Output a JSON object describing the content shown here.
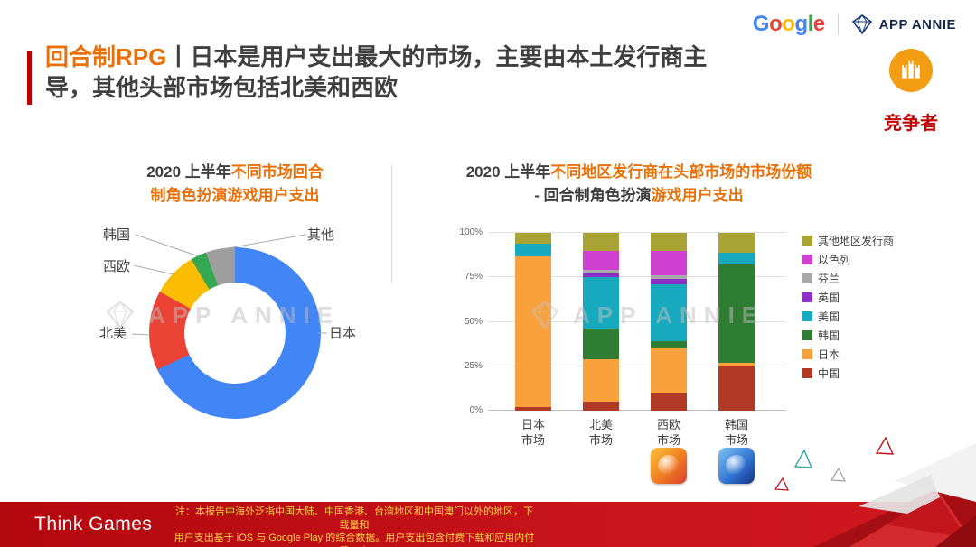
{
  "header": {
    "title_segments": [
      {
        "text": "回合制RPG",
        "highlight": true
      },
      {
        "text": "丨日本是用户支出最大的市场，主要由本土发行商主\n导，其他头部市场包括北美和西欧",
        "highlight": false
      }
    ],
    "google_letters": [
      {
        "ch": "G",
        "color": "#4285F4"
      },
      {
        "ch": "o",
        "color": "#EA4335"
      },
      {
        "ch": "o",
        "color": "#FBBC04"
      },
      {
        "ch": "g",
        "color": "#4285F4"
      },
      {
        "ch": "l",
        "color": "#34A853"
      },
      {
        "ch": "e",
        "color": "#EA4335"
      }
    ],
    "app_annie_label": "APP ANNIE",
    "badge_label": "竞争者"
  },
  "watermark_label": "APP ANNIE",
  "chart_data": [
    {
      "type": "pie",
      "subtype": "donut",
      "title_segments": [
        {
          "text": "2020 上半年",
          "highlight": false
        },
        {
          "text": "不同市场回合\n制角色扮演游戏用户支出",
          "highlight": true
        }
      ],
      "labels": [
        "日本",
        "北美",
        "西欧",
        "韩国",
        "其他"
      ],
      "values": [
        68,
        15,
        8.5,
        3,
        5.5
      ],
      "unit": "%",
      "colors": [
        "#4285F4",
        "#EA4335",
        "#FBBC04",
        "#34A853",
        "#9E9E9E"
      ],
      "legend_position": "around-labels"
    },
    {
      "type": "bar",
      "stacked": true,
      "percent": true,
      "title_segments": [
        {
          "text": "2020 上半年",
          "highlight": false
        },
        {
          "text": "不同地区发行商在头部市场的市场份额",
          "highlight": true
        },
        {
          "text": "\n- 回合制角色扮演",
          "highlight": false
        },
        {
          "text": "游戏用户支出",
          "highlight": true
        }
      ],
      "categories": [
        "日本市场",
        "北美市场",
        "西欧市场",
        "韩国市场"
      ],
      "series": [
        {
          "name": "中国",
          "color": "#B03A26",
          "values": [
            2,
            5,
            10,
            25
          ]
        },
        {
          "name": "日本",
          "color": "#F9A13C",
          "values": [
            85,
            24,
            25,
            2
          ]
        },
        {
          "name": "韩国",
          "color": "#2E7D32",
          "values": [
            0,
            17,
            4,
            55
          ]
        },
        {
          "name": "美国",
          "color": "#17A9BE",
          "values": [
            7,
            29,
            32,
            7
          ]
        },
        {
          "name": "英国",
          "color": "#8C30C9",
          "values": [
            0,
            2,
            3,
            0
          ]
        },
        {
          "name": "芬兰",
          "color": "#A9A9A9",
          "values": [
            0,
            2,
            2,
            0
          ]
        },
        {
          "name": "以色列",
          "color": "#D040D0",
          "values": [
            0,
            11,
            14,
            0
          ]
        },
        {
          "name": "其他地区发行商",
          "color": "#A8A332",
          "values": [
            6,
            10,
            10,
            11
          ]
        }
      ],
      "legend_top_to_bottom": [
        "其他地区发行商",
        "以色列",
        "芬兰",
        "英国",
        "美国",
        "韩国",
        "日本",
        "中国"
      ],
      "yticks": [
        "0%",
        "25%",
        "50%",
        "75%",
        "100%"
      ],
      "ylim": [
        0,
        100
      ],
      "grid": true,
      "legend_position": "right"
    }
  ],
  "app_icons": [
    "rpg-game-icon-1",
    "rpg-game-icon-2"
  ],
  "footer": {
    "brand": "Think Games",
    "note": "注：本报告中海外泛指中国大陆、中国香港、台湾地区和中国澳门以外的地区，下载量和\n用户支出基于 iOS 与 Google Play 的综合数据。用户支出包含付费下载和应用内付费，未\n去除商店分成"
  }
}
